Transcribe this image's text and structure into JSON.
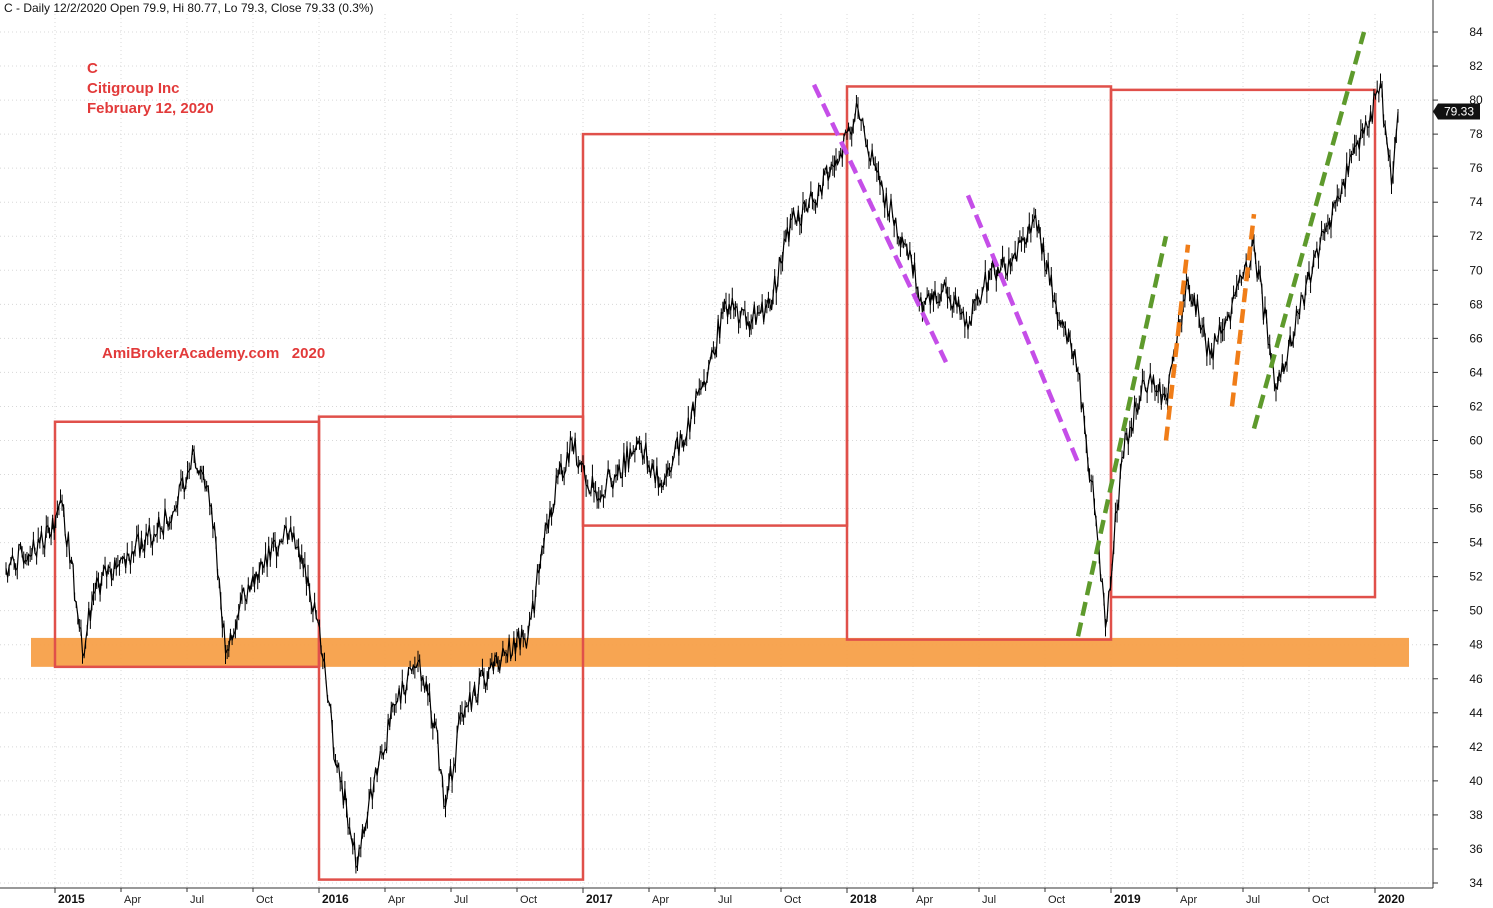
{
  "header": {
    "text": "C - Daily 12/2/2020 Open 79.9, Hi 80.77, Lo 79.3, Close 79.33 (0.3%)"
  },
  "annotation": {
    "ticker": "C",
    "company": "Citigroup Inc",
    "date": "February 12, 2020"
  },
  "watermark": {
    "text": "AmiBrokerAcademy.com   2020"
  },
  "colors": {
    "price": "#000000",
    "box": "#e0504a",
    "support": "#f7a049",
    "purple": "#c54ee8",
    "orange": "#f07d18",
    "green": "#5e9a2c",
    "grid": "#d8d8d8",
    "price_label_bg": "#111111"
  },
  "chart_data": {
    "type": "line",
    "y_axis": {
      "range": [
        34,
        84
      ],
      "ticks": [
        "34",
        "36",
        "38",
        "40",
        "42",
        "44",
        "46",
        "48",
        "50",
        "52",
        "54",
        "56",
        "58",
        "60",
        "62",
        "64",
        "66",
        "68",
        "70",
        "72",
        "74",
        "76",
        "78",
        "80",
        "82",
        "84"
      ],
      "position": "right"
    },
    "x_axis": {
      "year_labels": [
        "2015",
        "2016",
        "2017",
        "2018",
        "2019",
        "2020"
      ],
      "month_labels": [
        "Apr",
        "Jul",
        "Oct",
        "Apr",
        "Jul",
        "Oct",
        "Apr",
        "Jul",
        "Oct",
        "Apr",
        "Jul",
        "Oct",
        "Apr",
        "Jul",
        "Oct"
      ]
    },
    "last_price_label": "79.33",
    "grid": true,
    "series": [
      {
        "points": [
          [
            "2014-12",
            52.5
          ],
          [
            "2014-12",
            54.5
          ],
          [
            "2015-01",
            56.5
          ],
          [
            "2015-01",
            53
          ],
          [
            "2015-02",
            47.5
          ],
          [
            "2015-02",
            51
          ],
          [
            "2015-03",
            52.5
          ],
          [
            "2015-04",
            53.5
          ],
          [
            "2015-05",
            54.5
          ],
          [
            "2015-06",
            56
          ],
          [
            "2015-07",
            59.5
          ],
          [
            "2015-07",
            58
          ],
          [
            "2015-08",
            55
          ],
          [
            "2015-08",
            47.5
          ],
          [
            "2015-09",
            51
          ],
          [
            "2015-10",
            52.5
          ],
          [
            "2015-11",
            55
          ],
          [
            "2015-12",
            52
          ],
          [
            "2016-01",
            47
          ],
          [
            "2016-01",
            41
          ],
          [
            "2016-02",
            38.5
          ],
          [
            "2016-02",
            35
          ],
          [
            "2016-03",
            40
          ],
          [
            "2016-04",
            44.5
          ],
          [
            "2016-05",
            47
          ],
          [
            "2016-06",
            43.5
          ],
          [
            "2016-06",
            38.5
          ],
          [
            "2016-07",
            44
          ],
          [
            "2016-08",
            46
          ],
          [
            "2016-09",
            47.5
          ],
          [
            "2016-10",
            48.5
          ],
          [
            "2016-11",
            56
          ],
          [
            "2016-12",
            60
          ],
          [
            "2017-01",
            57
          ],
          [
            "2017-02",
            58
          ],
          [
            "2017-03",
            60
          ],
          [
            "2017-04",
            57.5
          ],
          [
            "2017-05",
            60
          ],
          [
            "2017-06",
            63.5
          ],
          [
            "2017-07",
            68
          ],
          [
            "2017-08",
            67
          ],
          [
            "2017-09",
            68
          ],
          [
            "2017-10",
            73
          ],
          [
            "2017-11",
            74
          ],
          [
            "2017-12",
            76.5
          ],
          [
            "2018-01",
            79.5
          ],
          [
            "2018-02",
            75
          ],
          [
            "2018-03",
            72
          ],
          [
            "2018-04",
            68
          ],
          [
            "2018-05",
            69
          ],
          [
            "2018-06",
            66.5
          ],
          [
            "2018-07",
            70
          ],
          [
            "2018-08",
            70.5
          ],
          [
            "2018-09",
            73
          ],
          [
            "2018-10",
            68
          ],
          [
            "2018-11",
            64
          ],
          [
            "2018-12",
            56
          ],
          [
            "2018-12",
            49
          ],
          [
            "2019-01",
            59
          ],
          [
            "2019-02",
            63.5
          ],
          [
            "2019-03",
            62.5
          ],
          [
            "2019-04",
            69.5
          ],
          [
            "2019-05",
            65
          ],
          [
            "2019-06",
            68
          ],
          [
            "2019-07",
            71.5
          ],
          [
            "2019-08",
            63
          ],
          [
            "2019-09",
            67.5
          ],
          [
            "2019-10",
            71.5
          ],
          [
            "2019-11",
            75
          ],
          [
            "2019-12",
            78
          ],
          [
            "2020-01",
            81
          ],
          [
            "2020-01",
            75
          ],
          [
            "2020-02",
            79.3
          ]
        ]
      }
    ],
    "boxes": [
      {
        "start": "2014-12",
        "end": "2015-12",
        "low": 46.7,
        "high": 61.1
      },
      {
        "start": "2015-12",
        "end": "2016-12",
        "low": 34.2,
        "high": 61.4
      },
      {
        "start": "2016-12",
        "end": "2017-12",
        "low": 55.0,
        "high": 78.0
      },
      {
        "start": "2017-12",
        "end": "2018-12",
        "low": 48.3,
        "high": 80.8
      },
      {
        "start": "2018-12",
        "end": "2019-12",
        "low": 50.8,
        "high": 80.6
      }
    ],
    "support_zone": {
      "low": 46.7,
      "high": 48.4
    },
    "trendlines": [
      {
        "color": "purple",
        "from": [
          "2017-11",
          80.9
        ],
        "to": [
          "2018-05",
          64.6
        ]
      },
      {
        "color": "purple",
        "from": [
          "2018-06",
          74.4
        ],
        "to": [
          "2018-11",
          58.7
        ]
      },
      {
        "color": "green",
        "from": [
          "2018-11",
          48.5
        ],
        "to": [
          "2019-03",
          72.0
        ]
      },
      {
        "color": "orange",
        "from": [
          "2019-03",
          60.0
        ],
        "to": [
          "2019-04",
          71.5
        ]
      },
      {
        "color": "orange",
        "from": [
          "2019-06",
          62.0
        ],
        "to": [
          "2019-07",
          73.3
        ]
      },
      {
        "color": "green",
        "from": [
          "2019-07",
          60.7
        ],
        "to": [
          "2019-12",
          84.0
        ]
      }
    ]
  }
}
